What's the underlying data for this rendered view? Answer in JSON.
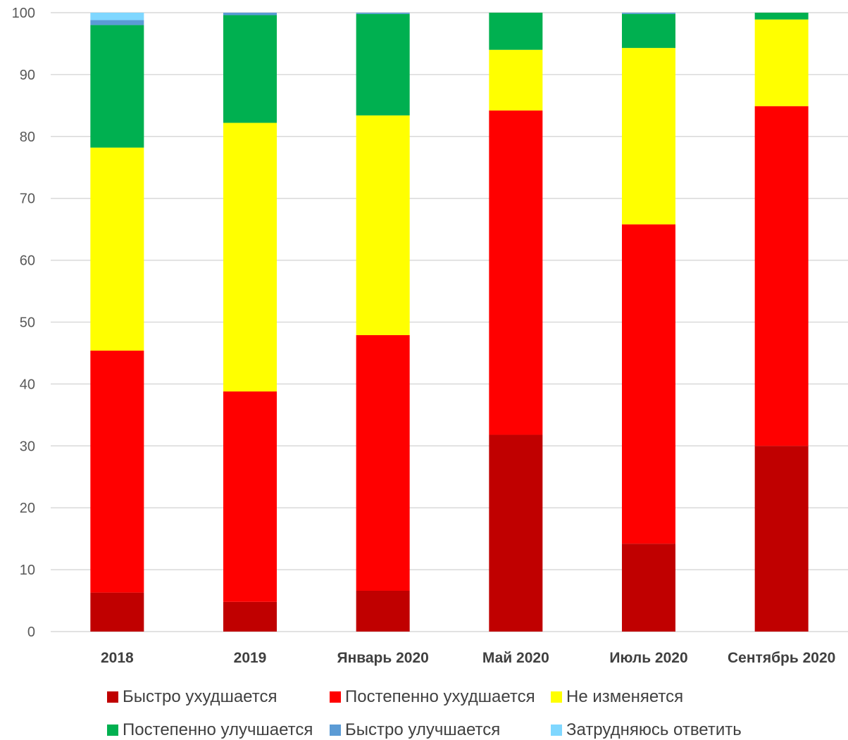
{
  "chart_data": {
    "type": "bar",
    "stacked": true,
    "title": "",
    "xlabel": "",
    "ylabel": "",
    "ylim": [
      0,
      100
    ],
    "yticks": [
      0,
      10,
      20,
      30,
      40,
      50,
      60,
      70,
      80,
      90,
      100
    ],
    "grid": true,
    "legend_position": "bottom",
    "categories": [
      "2018",
      "2019",
      "Январь 2020",
      "Май 2020",
      "Июль 2020",
      "Сентябрь 2020"
    ],
    "series": [
      {
        "name": "Быстро ухудшается",
        "color": "#C00000",
        "values": [
          6.3,
          4.8,
          6.6,
          31.8,
          14.2,
          30.0
        ]
      },
      {
        "name": "Постепенно ухудшается",
        "color": "#FF0000",
        "values": [
          39.1,
          34.0,
          41.3,
          52.4,
          51.6,
          54.9
        ]
      },
      {
        "name": "Не изменяется",
        "color": "#FFFF00",
        "values": [
          32.8,
          43.4,
          35.5,
          9.8,
          28.5,
          14.0
        ]
      },
      {
        "name": "Постепенно улучшается",
        "color": "#00B050",
        "values": [
          19.8,
          17.4,
          16.4,
          6.0,
          5.5,
          1.1
        ]
      },
      {
        "name": "Быстро улучшается",
        "color": "#5B9BD5",
        "values": [
          0.8,
          0.6,
          0.3,
          0.2,
          0.4,
          0.0
        ]
      },
      {
        "name": "Затрудняюсь ответить",
        "color": "#7FD7FF",
        "values": [
          1.3,
          0.0,
          0.0,
          0.0,
          0.0,
          0.0
        ]
      }
    ]
  }
}
